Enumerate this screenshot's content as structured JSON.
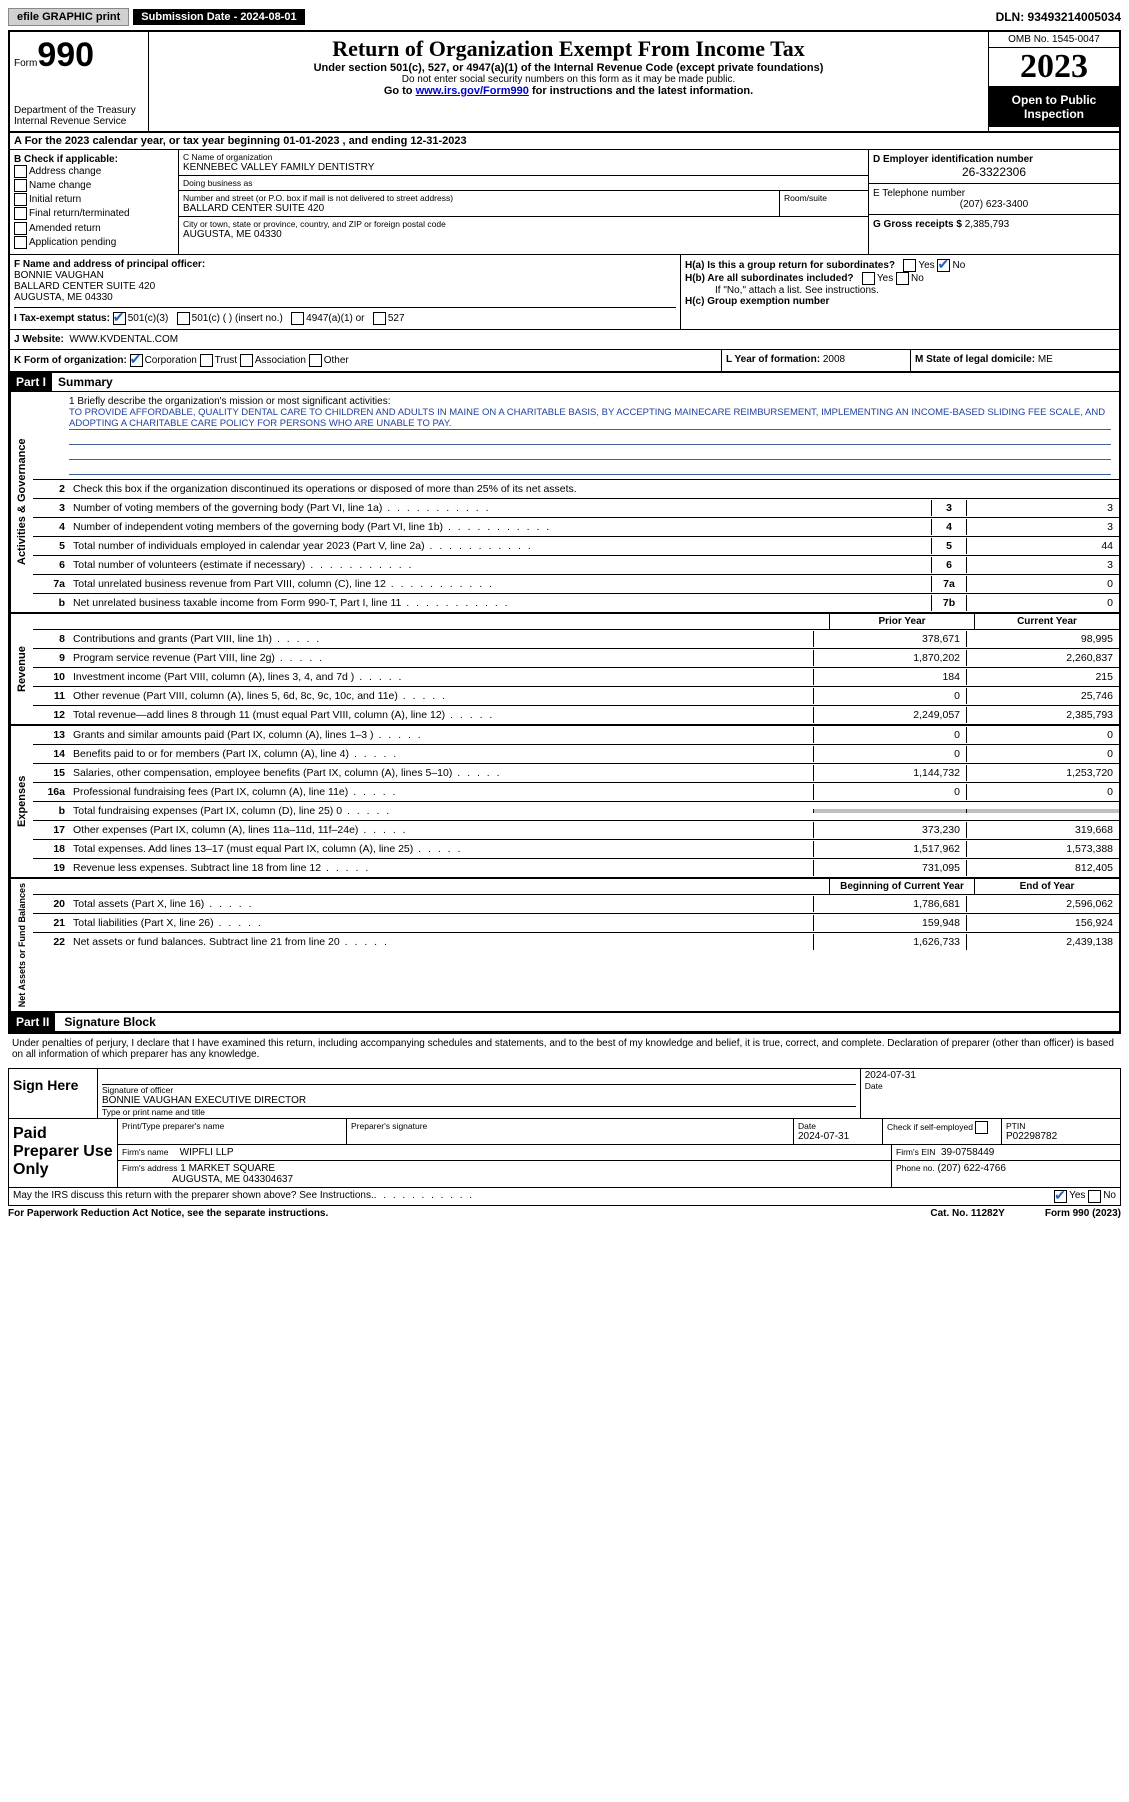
{
  "topbar": {
    "efile": "efile GRAPHIC print",
    "submission": "Submission Date - 2024-08-01",
    "dln": "DLN: 93493214005034"
  },
  "header": {
    "form_label": "Form",
    "form_num": "990",
    "dept": "Department of the Treasury\nInternal Revenue Service",
    "title": "Return of Organization Exempt From Income Tax",
    "subtitle": "Under section 501(c), 527, or 4947(a)(1) of the Internal Revenue Code (except private foundations)",
    "note": "Do not enter social security numbers on this form as it may be made public.",
    "link_pre": "Go to ",
    "link": "www.irs.gov/Form990",
    "link_post": " for instructions and the latest information.",
    "omb": "OMB No. 1545-0047",
    "year": "2023",
    "open": "Open to Public Inspection"
  },
  "row_a": "A For the 2023 calendar year, or tax year beginning 01-01-2023   , and ending 12-31-2023",
  "section_b": {
    "label": "B Check if applicable:",
    "items": [
      "Address change",
      "Name change",
      "Initial return",
      "Final return/terminated",
      "Amended return",
      "Application pending"
    ]
  },
  "section_c": {
    "name_label": "C Name of organization",
    "name": "KENNEBEC VALLEY FAMILY DENTISTRY",
    "dba_label": "Doing business as",
    "dba": "",
    "addr_label": "Number and street (or P.O. box if mail is not delivered to street address)",
    "addr": "BALLARD CENTER SUITE 420",
    "room_label": "Room/suite",
    "city_label": "City or town, state or province, country, and ZIP or foreign postal code",
    "city": "AUGUSTA, ME  04330"
  },
  "section_d": {
    "ein_label": "D Employer identification number",
    "ein": "26-3322306",
    "tel_label": "E Telephone number",
    "tel": "(207) 623-3400",
    "gross_label": "G Gross receipts $",
    "gross": "2,385,793"
  },
  "section_f": {
    "label": "F Name and address of principal officer:",
    "name": "BONNIE VAUGHAN",
    "addr1": "BALLARD CENTER SUITE 420",
    "addr2": "AUGUSTA, ME  04330"
  },
  "section_h": {
    "ha_label": "H(a)  Is this a group return for subordinates?",
    "ha_yes": "Yes",
    "ha_no": "No",
    "hb_label": "H(b)  Are all subordinates included?",
    "hb_yes": "Yes",
    "hb_no": "No",
    "hb_note": "If \"No,\" attach a list. See instructions.",
    "hc_label": "H(c)  Group exemption number"
  },
  "section_i": {
    "label": "I  Tax-exempt status:",
    "o501c3": "501(c)(3)",
    "o501c": "501(c) (  ) (insert no.)",
    "o4947": "4947(a)(1) or",
    "o527": "527"
  },
  "section_j": {
    "label": "J  Website:",
    "url": "WWW.KVDENTAL.COM"
  },
  "section_k": {
    "label": "K Form of organization:",
    "corp": "Corporation",
    "trust": "Trust",
    "assoc": "Association",
    "other": "Other",
    "l_label": "L Year of formation:",
    "l_val": "2008",
    "m_label": "M State of legal domicile:",
    "m_val": "ME"
  },
  "part1": {
    "header": "Part I",
    "title": "Summary",
    "mission_label": "1   Briefly describe the organization's mission or most significant activities:",
    "mission": "TO PROVIDE AFFORDABLE, QUALITY DENTAL CARE TO CHILDREN AND ADULTS IN MAINE ON A CHARITABLE BASIS, BY ACCEPTING MAINECARE REIMBURSEMENT, IMPLEMENTING AN INCOME-BASED SLIDING FEE SCALE, AND ADOPTING A CHARITABLE CARE POLICY FOR PERSONS WHO ARE UNABLE TO PAY.",
    "line2": "Check this box       if the organization discontinued its operations or disposed of more than 25% of its net assets.",
    "governance_label": "Activities & Governance",
    "revenue_label": "Revenue",
    "expenses_label": "Expenses",
    "netassets_label": "Net Assets or Fund Balances",
    "prior_year": "Prior Year",
    "current_year": "Current Year",
    "begin_year": "Beginning of Current Year",
    "end_year": "End of Year",
    "lines_gov": [
      {
        "n": "3",
        "d": "Number of voting members of the governing body (Part VI, line 1a)",
        "box": "3",
        "v": "3"
      },
      {
        "n": "4",
        "d": "Number of independent voting members of the governing body (Part VI, line 1b)",
        "box": "4",
        "v": "3"
      },
      {
        "n": "5",
        "d": "Total number of individuals employed in calendar year 2023 (Part V, line 2a)",
        "box": "5",
        "v": "44"
      },
      {
        "n": "6",
        "d": "Total number of volunteers (estimate if necessary)",
        "box": "6",
        "v": "3"
      },
      {
        "n": "7a",
        "d": "Total unrelated business revenue from Part VIII, column (C), line 12",
        "box": "7a",
        "v": "0"
      },
      {
        "n": "b",
        "d": "Net unrelated business taxable income from Form 990-T, Part I, line 11",
        "box": "7b",
        "v": "0"
      }
    ],
    "lines_rev": [
      {
        "n": "8",
        "d": "Contributions and grants (Part VIII, line 1h)",
        "p": "378,671",
        "c": "98,995"
      },
      {
        "n": "9",
        "d": "Program service revenue (Part VIII, line 2g)",
        "p": "1,870,202",
        "c": "2,260,837"
      },
      {
        "n": "10",
        "d": "Investment income (Part VIII, column (A), lines 3, 4, and 7d )",
        "p": "184",
        "c": "215"
      },
      {
        "n": "11",
        "d": "Other revenue (Part VIII, column (A), lines 5, 6d, 8c, 9c, 10c, and 11e)",
        "p": "0",
        "c": "25,746"
      },
      {
        "n": "12",
        "d": "Total revenue—add lines 8 through 11 (must equal Part VIII, column (A), line 12)",
        "p": "2,249,057",
        "c": "2,385,793"
      }
    ],
    "lines_exp": [
      {
        "n": "13",
        "d": "Grants and similar amounts paid (Part IX, column (A), lines 1–3 )",
        "p": "0",
        "c": "0"
      },
      {
        "n": "14",
        "d": "Benefits paid to or for members (Part IX, column (A), line 4)",
        "p": "0",
        "c": "0"
      },
      {
        "n": "15",
        "d": "Salaries, other compensation, employee benefits (Part IX, column (A), lines 5–10)",
        "p": "1,144,732",
        "c": "1,253,720"
      },
      {
        "n": "16a",
        "d": "Professional fundraising fees (Part IX, column (A), line 11e)",
        "p": "0",
        "c": "0"
      },
      {
        "n": "b",
        "d": "Total fundraising expenses (Part IX, column (D), line 25) 0",
        "p": "shade",
        "c": "shade"
      },
      {
        "n": "17",
        "d": "Other expenses (Part IX, column (A), lines 11a–11d, 11f–24e)",
        "p": "373,230",
        "c": "319,668"
      },
      {
        "n": "18",
        "d": "Total expenses. Add lines 13–17 (must equal Part IX, column (A), line 25)",
        "p": "1,517,962",
        "c": "1,573,388"
      },
      {
        "n": "19",
        "d": "Revenue less expenses. Subtract line 18 from line 12",
        "p": "731,095",
        "c": "812,405"
      }
    ],
    "lines_net": [
      {
        "n": "20",
        "d": "Total assets (Part X, line 16)",
        "p": "1,786,681",
        "c": "2,596,062"
      },
      {
        "n": "21",
        "d": "Total liabilities (Part X, line 26)",
        "p": "159,948",
        "c": "156,924"
      },
      {
        "n": "22",
        "d": "Net assets or fund balances. Subtract line 21 from line 20",
        "p": "1,626,733",
        "c": "2,439,138"
      }
    ]
  },
  "part2": {
    "header": "Part II",
    "title": "Signature Block",
    "penalty": "Under penalties of perjury, I declare that I have examined this return, including accompanying schedules and statements, and to the best of my knowledge and belief, it is true, correct, and complete. Declaration of preparer (other than officer) is based on all information of which preparer has any knowledge.",
    "sign_here": "Sign Here",
    "sig_officer_lbl": "Signature of officer",
    "sig_officer": "BONNIE VAUGHAN  EXECUTIVE DIRECTOR",
    "sig_name_lbl": "Type or print name and title",
    "sig_date_lbl": "Date",
    "sig_date": "2024-07-31",
    "paid_prep": "Paid Preparer Use Only",
    "prep_name_lbl": "Print/Type preparer's name",
    "prep_sig_lbl": "Preparer's signature",
    "prep_date_lbl": "Date",
    "prep_date": "2024-07-31",
    "prep_check_lbl": "Check         if self-employed",
    "ptin_lbl": "PTIN",
    "ptin": "P02298782",
    "firm_name_lbl": "Firm's name",
    "firm_name": "WIPFLI LLP",
    "firm_ein_lbl": "Firm's EIN",
    "firm_ein": "39-0758449",
    "firm_addr_lbl": "Firm's address",
    "firm_addr": "1 MARKET SQUARE",
    "firm_addr2": "AUGUSTA, ME  043304637",
    "phone_lbl": "Phone no.",
    "phone": "(207) 622-4766",
    "discuss": "May the IRS discuss this return with the preparer shown above? See Instructions.",
    "discuss_yes": "Yes",
    "discuss_no": "No"
  },
  "footer": {
    "paperwork": "For Paperwork Reduction Act Notice, see the separate instructions.",
    "cat": "Cat. No. 11282Y",
    "form": "Form 990 (2023)"
  }
}
